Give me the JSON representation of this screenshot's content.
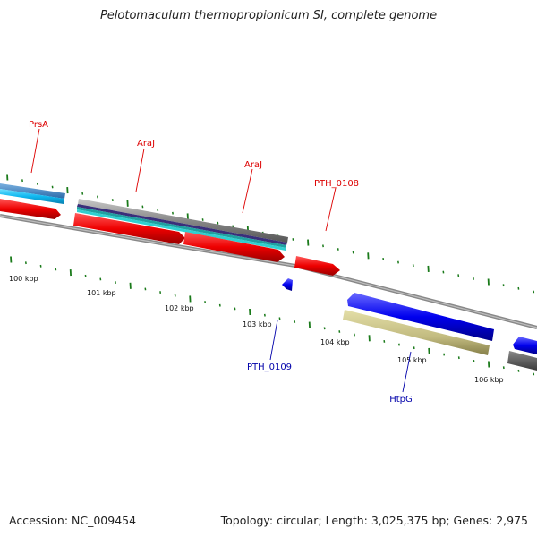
{
  "title": "Pelotomaculum thermopropionicum SI, complete genome",
  "accession_text": "Accession: NC_009454",
  "topology_text": "Topology: circular; Length: 3,025,375 bp; Genes: 2,975",
  "colors": {
    "forward": "#ff0000",
    "reverse": "#0000ff",
    "label_forward": "#dd0000",
    "label_reverse": "#0000aa",
    "tick": "#1a7a1a",
    "backbone": "#808080"
  },
  "scale_labels": [
    "100 kbp",
    "101 kbp",
    "102 kbp",
    "103 kbp",
    "104 kbp",
    "105 kbp",
    "106 kbp"
  ],
  "gene_labels": [
    {
      "text": "PrsA",
      "strand": "forward"
    },
    {
      "text": "AraJ",
      "strand": "forward"
    },
    {
      "text": "AraJ",
      "strand": "forward"
    },
    {
      "text": "PTH_0108",
      "strand": "forward"
    },
    {
      "text": "PTH_0109",
      "strand": "reverse"
    },
    {
      "text": "HtpG",
      "strand": "reverse"
    }
  ]
}
